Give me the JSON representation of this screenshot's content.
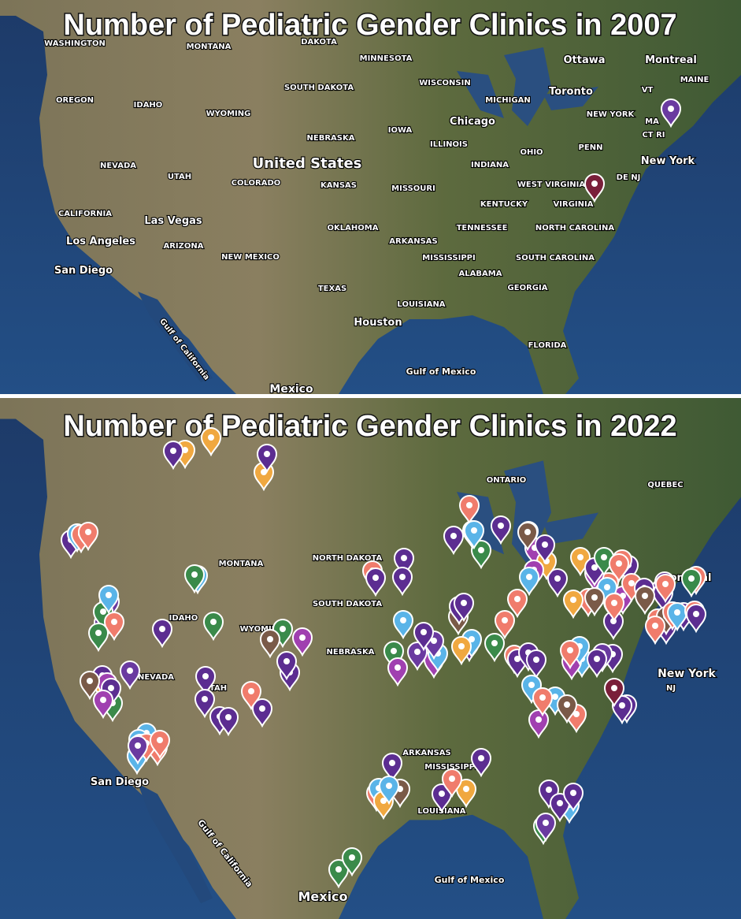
{
  "panels": [
    {
      "title": "Number of Pediatric Gender Clinics in 2007",
      "labels": [
        "WASHINGTON",
        "MONTANA",
        "DAKOTA",
        "MINNESOTA",
        "Ottawa",
        "Montreal",
        "MAINE",
        "VT",
        "SOUTH DAKOTA",
        "WISCONSIN",
        "MICHIGAN",
        "Toronto",
        "OREGON",
        "IDAHO",
        "WYOMING",
        "Chicago",
        "NEW YORK",
        "MA",
        "CT RI",
        "NEBRASKA",
        "IOWA",
        "ILLINOIS",
        "OHIO",
        "PENN",
        "NEVADA",
        "UTAH",
        "United States",
        "COLORADO",
        "KANSAS",
        "INDIANA",
        "MISSOURI",
        "New York",
        "WEST VIRGINIA",
        "DE NJ",
        "KENTUCKY",
        "VIRGINIA",
        "CALIFORNIA",
        "Las Vegas",
        "OKLAHOMA",
        "TENNESSEE",
        "NORTH CAROLINA",
        "Los Angeles",
        "ARIZONA",
        "NEW MEXICO",
        "ARKANSAS",
        "MISSISSIPPI",
        "SOUTH CAROLINA",
        "San Diego",
        "ALABAMA",
        "TEXAS",
        "GEORGIA",
        "LOUISIANA",
        "Houston",
        "Gulf of California",
        "FLORIDA",
        "Gulf of Mexico",
        "Mexico"
      ]
    },
    {
      "title": "Number of Pediatric Gender Clinics in 2022",
      "labels": [
        "ONTARIO",
        "QUEBEC",
        "NORTH DAKOTA",
        "MONTANA",
        "SOUTH DAKOTA",
        "WYOMING",
        "IDAHO",
        "NEBRASKA",
        "NEVADA",
        "UTAH",
        "ARKANSAS",
        "MISSISSIPPI",
        "LOUISIANA",
        "New York",
        "NJ",
        "San Diego",
        "Gulf of Mexico",
        "Gulf of California",
        "Mexico",
        "ontreal"
      ]
    }
  ]
}
